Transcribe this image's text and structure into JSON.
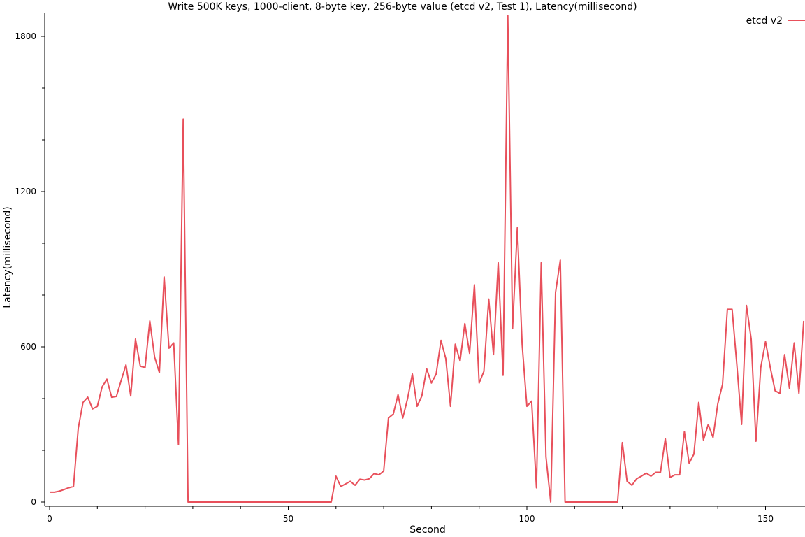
{
  "chart_data": {
    "type": "line",
    "title": "Write 500K keys, 1000-client, 8-byte key, 256-byte value (etcd v2, Test 1), Latency(millisecond)",
    "xlabel": "Second",
    "ylabel": "Latency(millisecond)",
    "xlim": [
      0,
      158
    ],
    "ylim": [
      0,
      1880
    ],
    "x_major_ticks": [
      0,
      50,
      100,
      150
    ],
    "x_minor_tick_step": 10,
    "y_major_ticks": [
      0,
      600,
      1200,
      1800
    ],
    "y_minor_tick_step": 200,
    "grid": false,
    "legend_position": "top-right",
    "series": [
      {
        "name": "etcd v2",
        "color": "#e8505b",
        "x": [
          0,
          1,
          2,
          3,
          4,
          5,
          6,
          7,
          8,
          9,
          10,
          11,
          12,
          13,
          14,
          15,
          16,
          17,
          18,
          19,
          20,
          21,
          22,
          23,
          24,
          25,
          26,
          27,
          28,
          29,
          30,
          31,
          32,
          33,
          34,
          35,
          36,
          37,
          38,
          39,
          40,
          41,
          42,
          43,
          44,
          45,
          46,
          47,
          48,
          49,
          50,
          51,
          52,
          53,
          54,
          55,
          56,
          57,
          58,
          59,
          60,
          61,
          62,
          63,
          64,
          65,
          66,
          67,
          68,
          69,
          70,
          71,
          72,
          73,
          74,
          75,
          76,
          77,
          78,
          79,
          80,
          81,
          82,
          83,
          84,
          85,
          86,
          87,
          88,
          89,
          90,
          91,
          92,
          93,
          94,
          95,
          96,
          97,
          98,
          99,
          100,
          101,
          102,
          103,
          104,
          105,
          106,
          107,
          108,
          109,
          110,
          111,
          112,
          113,
          114,
          115,
          116,
          117,
          118,
          119,
          120,
          121,
          122,
          123,
          124,
          125,
          126,
          127,
          128,
          129,
          130,
          131,
          132,
          133,
          134,
          135,
          136,
          137,
          138,
          139,
          140,
          141,
          142,
          143,
          144,
          145,
          146,
          147,
          148,
          149,
          150,
          151,
          152,
          153,
          154,
          155,
          156,
          157,
          158
        ],
        "values": [
          38,
          38,
          42,
          48,
          55,
          60,
          285,
          385,
          405,
          360,
          370,
          445,
          475,
          405,
          408,
          470,
          530,
          410,
          630,
          525,
          520,
          700,
          560,
          500,
          870,
          595,
          615,
          222,
          1480,
          0,
          0,
          0,
          0,
          0,
          0,
          0,
          0,
          0,
          0,
          0,
          0,
          0,
          0,
          0,
          0,
          0,
          0,
          0,
          0,
          0,
          0,
          0,
          0,
          0,
          0,
          0,
          0,
          0,
          0,
          0,
          100,
          60,
          70,
          80,
          65,
          88,
          85,
          90,
          110,
          105,
          120,
          325,
          340,
          415,
          325,
          400,
          495,
          370,
          410,
          515,
          460,
          495,
          625,
          555,
          370,
          610,
          545,
          690,
          575,
          840,
          460,
          505,
          785,
          570,
          925,
          490,
          1880,
          670,
          1060,
          610,
          370,
          390,
          55,
          925,
          175,
          0,
          810,
          935,
          0,
          0,
          0,
          0,
          0,
          0,
          0,
          0,
          0,
          0,
          0,
          0,
          230,
          80,
          65,
          90,
          100,
          112,
          100,
          115,
          115,
          245,
          95,
          105,
          105,
          272,
          150,
          185,
          385,
          240,
          300,
          250,
          380,
          455,
          745,
          745,
          530,
          300,
          760,
          630,
          235,
          520,
          620,
          520,
          430,
          420,
          570,
          440,
          615,
          420,
          700
        ]
      }
    ]
  }
}
